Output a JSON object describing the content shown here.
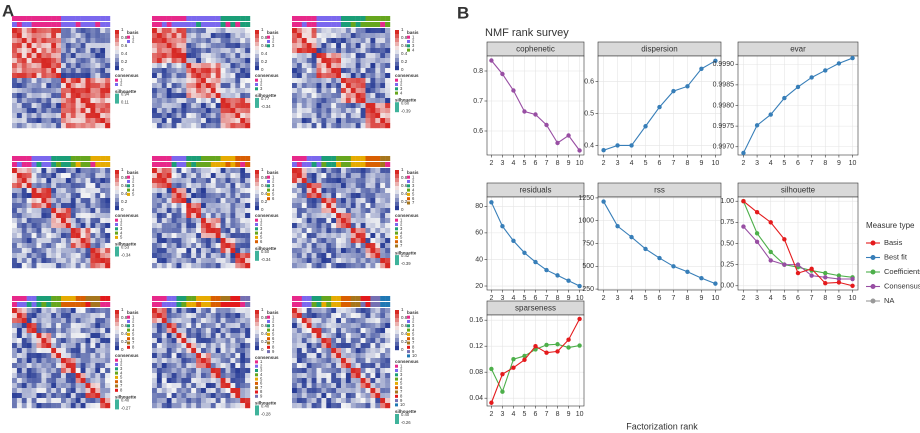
{
  "panel_a": {
    "label": "A",
    "colorbar_ticks": [
      "1",
      "0.8",
      "0.6",
      "0.4",
      "0.2",
      "0"
    ],
    "basis_title": "basis",
    "consensus_title": "consensus",
    "silhouette_title": "silhouette",
    "annotation_colors": [
      "#e7298a",
      "#7b68ee",
      "#1b9e77",
      "#66a61e",
      "#e6ab02",
      "#d95f02",
      "#a6761d",
      "#e31a1c",
      "#7570b3",
      "#1f78b4"
    ],
    "heatmaps": [
      {
        "clusters": [
          "1",
          "2"
        ],
        "silhouette": [
          "0.94",
          "0.11"
        ]
      },
      {
        "clusters": [
          "1",
          "2",
          "3"
        ],
        "silhouette": [
          "0.77",
          "-0.34"
        ]
      },
      {
        "clusters": [
          "1",
          "2",
          "3",
          "4"
        ],
        "silhouette": [
          "0.60",
          "-0.39"
        ]
      },
      {
        "clusters": [
          "1",
          "2",
          "3",
          "4",
          "5"
        ],
        "silhouette": [
          "0.53",
          "-0.34"
        ]
      },
      {
        "clusters": [
          "1",
          "2",
          "3",
          "4",
          "5",
          "6"
        ],
        "silhouette": [
          "0.50",
          "-0.34"
        ]
      },
      {
        "clusters": [
          "1",
          "2",
          "3",
          "4",
          "5",
          "6",
          "7"
        ],
        "silhouette": [
          "0.42",
          "-0.39"
        ]
      },
      {
        "clusters": [
          "1",
          "2",
          "3",
          "4",
          "5",
          "6",
          "7",
          "8"
        ],
        "silhouette": [
          "0.40",
          "-0.27"
        ]
      },
      {
        "clusters": [
          "1",
          "2",
          "3",
          "4",
          "5",
          "6",
          "7",
          "8",
          "9"
        ],
        "silhouette": [
          "0.40",
          "-0.28"
        ]
      },
      {
        "clusters": [
          "1",
          "2",
          "3",
          "4",
          "5",
          "6",
          "7",
          "8",
          "9",
          "10"
        ],
        "silhouette": [
          "0.40",
          "-0.26"
        ]
      }
    ]
  },
  "panel_b": {
    "label": "B",
    "title": "NMF rank survey",
    "x_label": "Factorization rank",
    "legend_title": "Measure type",
    "legend": [
      {
        "name": "Basis",
        "color": "#e41a1c"
      },
      {
        "name": "Best fit",
        "color": "#377eb8"
      },
      {
        "name": "Coefficients",
        "color": "#4daf4a"
      },
      {
        "name": "Consensus",
        "color": "#984ea3"
      },
      {
        "name": "NA",
        "color": "#999999"
      }
    ]
  },
  "chart_data": [
    {
      "type": "line",
      "title": "cophenetic",
      "x": [
        2,
        3,
        4,
        5,
        6,
        7,
        8,
        9,
        10
      ],
      "xlim": [
        1.6,
        10.4
      ],
      "xticks": [
        2,
        3,
        4,
        5,
        6,
        7,
        8,
        9,
        10
      ],
      "ylim": [
        0.52,
        0.85
      ],
      "yticks": [
        0.6,
        0.7,
        0.8
      ],
      "grid": true,
      "series": [
        {
          "name": "Consensus",
          "values": [
            0.835,
            0.79,
            0.735,
            0.665,
            0.655,
            0.62,
            0.56,
            0.585,
            0.535
          ]
        }
      ]
    },
    {
      "type": "line",
      "title": "dispersion",
      "x": [
        2,
        3,
        4,
        5,
        6,
        7,
        8,
        9,
        10
      ],
      "xlim": [
        1.6,
        10.4
      ],
      "xticks": [
        2,
        3,
        4,
        5,
        6,
        7,
        8,
        9,
        10
      ],
      "ylim": [
        0.37,
        0.68
      ],
      "yticks": [
        0.4,
        0.5,
        0.6
      ],
      "grid": true,
      "series": [
        {
          "name": "Best fit",
          "values": [
            0.385,
            0.4,
            0.4,
            0.46,
            0.52,
            0.57,
            0.585,
            0.64,
            0.665
          ]
        }
      ]
    },
    {
      "type": "line",
      "title": "evar",
      "x": [
        2,
        3,
        4,
        5,
        6,
        7,
        8,
        9,
        10
      ],
      "xlim": [
        1.6,
        10.4
      ],
      "xticks": [
        2,
        3,
        4,
        5,
        6,
        7,
        8,
        9,
        10
      ],
      "ylim": [
        0.9968,
        0.9992
      ],
      "yticks": [
        {
          "value": 0.997,
          "label": "0.9970"
        },
        {
          "value": 0.9975,
          "label": "0.9975"
        },
        {
          "value": 0.998,
          "label": "0.9980"
        },
        {
          "value": 0.9985,
          "label": "0.9985"
        },
        {
          "value": 0.999,
          "label": "0.9990"
        }
      ],
      "grid": true,
      "series": [
        {
          "name": "Best fit",
          "values": [
            0.99685,
            0.99752,
            0.99778,
            0.99818,
            0.99845,
            0.99868,
            0.99885,
            0.99902,
            0.99915
          ]
        }
      ]
    },
    {
      "type": "line",
      "title": "residuals",
      "x": [
        2,
        3,
        4,
        5,
        6,
        7,
        8,
        9,
        10
      ],
      "xlim": [
        1.6,
        10.4
      ],
      "xticks": [
        2,
        3,
        4,
        5,
        6,
        7,
        8,
        9,
        10
      ],
      "ylim": [
        17,
        87
      ],
      "yticks": [
        20,
        40,
        60,
        80
      ],
      "grid": true,
      "series": [
        {
          "name": "Best fit",
          "values": [
            83,
            65,
            54,
            45,
            38,
            32,
            28,
            24,
            20
          ]
        }
      ]
    },
    {
      "type": "line",
      "title": "rss",
      "x": [
        2,
        3,
        4,
        5,
        6,
        7,
        8,
        9,
        10
      ],
      "xlim": [
        1.6,
        10.4
      ],
      "xticks": [
        2,
        3,
        4,
        5,
        6,
        7,
        8,
        9,
        10
      ],
      "ylim": [
        240,
        1260
      ],
      "yticks": [
        250,
        500,
        750,
        1000,
        1250
      ],
      "grid": true,
      "series": [
        {
          "name": "Best fit",
          "values": [
            1210,
            940,
            820,
            690,
            590,
            500,
            440,
            370,
            310
          ]
        }
      ]
    },
    {
      "type": "line",
      "title": "silhouette",
      "x": [
        2,
        3,
        4,
        5,
        6,
        7,
        8,
        9,
        10
      ],
      "xlim": [
        1.6,
        10.4
      ],
      "xticks": [
        2,
        3,
        4,
        5,
        6,
        7,
        8,
        9,
        10
      ],
      "ylim": [
        -0.05,
        1.05
      ],
      "yticks": [
        {
          "value": 0,
          "label": "0.00"
        },
        0.25,
        {
          "value": 0.5,
          "label": "0.50"
        },
        0.75,
        {
          "value": 1,
          "label": "1.00"
        }
      ],
      "grid": true,
      "series": [
        {
          "name": "Coefficients",
          "values": [
            1.0,
            0.62,
            0.4,
            0.25,
            0.22,
            0.18,
            0.15,
            0.12,
            0.1
          ]
        },
        {
          "name": "Consensus",
          "values": [
            0.7,
            0.52,
            0.3,
            0.25,
            0.25,
            0.12,
            0.1,
            0.08,
            0.08
          ]
        },
        {
          "name": "Basis",
          "values": [
            1.0,
            0.87,
            0.75,
            0.55,
            0.15,
            0.2,
            0.03,
            0.04,
            0.0
          ]
        }
      ]
    },
    {
      "type": "line",
      "title": "sparseness",
      "x": [
        2,
        3,
        4,
        5,
        6,
        7,
        8,
        9,
        10
      ],
      "xlim": [
        1.6,
        10.4
      ],
      "xticks": [
        2,
        3,
        4,
        5,
        6,
        7,
        8,
        9,
        10
      ],
      "ylim": [
        0.028,
        0.168
      ],
      "yticks": [
        0.04,
        0.08,
        0.12,
        0.16
      ],
      "grid": true,
      "series": [
        {
          "name": "Coefficients",
          "values": [
            0.085,
            0.05,
            0.1,
            0.105,
            0.115,
            0.122,
            0.123,
            0.118,
            0.121
          ]
        },
        {
          "name": "Basis",
          "values": [
            0.033,
            0.077,
            0.087,
            0.099,
            0.12,
            0.11,
            0.112,
            0.13,
            0.162
          ]
        }
      ]
    }
  ]
}
